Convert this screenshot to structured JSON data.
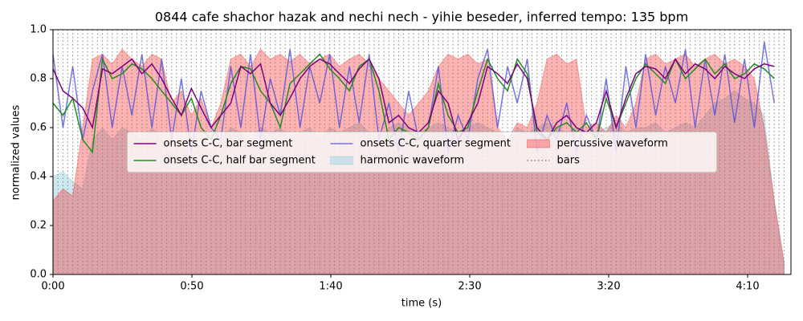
{
  "chart_data": {
    "type": "line",
    "title": "0844 cafe shachor hazak and nechi nech - yihie beseder, inferred tempo: 135 bpm",
    "x_label": "time (s)",
    "y_label": "normalized values",
    "xlim": [
      0,
      265.6
    ],
    "ylim": [
      0,
      1
    ],
    "xticks": [
      {
        "value": 0,
        "label": "0:00"
      },
      {
        "value": 50,
        "label": "0:50"
      },
      {
        "value": 100,
        "label": "1:40"
      },
      {
        "value": 150,
        "label": "2:30"
      },
      {
        "value": 200,
        "label": "3:20"
      },
      {
        "value": 250,
        "label": "4:10"
      }
    ],
    "yticks": [
      {
        "value": 0,
        "label": "0.0"
      },
      0.2,
      0.4,
      0.6,
      0.8,
      {
        "value": 1,
        "label": "1.0"
      }
    ],
    "legend": "center",
    "x": [
      0.0,
      3.6,
      7.1,
      10.7,
      14.2,
      17.8,
      21.3,
      24.9,
      28.4,
      32.0,
      35.6,
      39.1,
      42.7,
      46.2,
      49.8,
      53.3,
      56.9,
      60.4,
      64.0,
      67.6,
      71.1,
      74.7,
      78.2,
      81.8,
      85.3,
      88.9,
      92.4,
      96.0,
      99.6,
      103.1,
      106.7,
      110.2,
      113.8,
      117.3,
      120.9,
      124.4,
      128.0,
      131.6,
      135.1,
      138.7,
      142.2,
      145.8,
      149.3,
      152.9,
      156.4,
      160.0,
      163.6,
      167.1,
      170.7,
      174.2,
      177.8,
      181.3,
      184.9,
      188.4,
      192.0,
      195.6,
      199.1,
      202.7,
      206.2,
      209.8,
      213.3,
      216.9,
      220.4,
      224.0,
      227.6,
      231.1,
      234.7,
      238.2,
      241.8,
      245.3,
      248.9,
      252.4,
      256.0,
      259.6,
      263.1
    ],
    "series": [
      {
        "name": "onsets C-C, bar segment",
        "mark": "line",
        "color": "#800080",
        "alpha": 1,
        "values": [
          0.84,
          0.75,
          0.72,
          0.68,
          0.6,
          0.84,
          0.82,
          0.85,
          0.88,
          0.82,
          0.86,
          0.8,
          0.72,
          0.65,
          0.76,
          0.68,
          0.6,
          0.65,
          0.7,
          0.85,
          0.82,
          0.86,
          0.7,
          0.65,
          0.72,
          0.8,
          0.85,
          0.88,
          0.86,
          0.82,
          0.78,
          0.84,
          0.88,
          0.8,
          0.62,
          0.65,
          0.6,
          0.58,
          0.62,
          0.75,
          0.7,
          0.55,
          0.62,
          0.7,
          0.85,
          0.82,
          0.78,
          0.86,
          0.8,
          0.6,
          0.55,
          0.62,
          0.65,
          0.6,
          0.58,
          0.62,
          0.75,
          0.6,
          0.72,
          0.82,
          0.85,
          0.84,
          0.8,
          0.88,
          0.82,
          0.86,
          0.84,
          0.8,
          0.85,
          0.82,
          0.8,
          0.84,
          0.86,
          0.85,
          null
        ]
      },
      {
        "name": "onsets C-C, half bar segment",
        "mark": "line",
        "color": "#228b22",
        "alpha": 1,
        "values": [
          0.7,
          0.65,
          0.72,
          0.55,
          0.5,
          0.88,
          0.8,
          0.82,
          0.86,
          0.84,
          0.8,
          0.75,
          0.7,
          0.65,
          0.72,
          0.6,
          0.55,
          0.65,
          0.78,
          0.85,
          0.84,
          0.75,
          0.7,
          0.6,
          0.78,
          0.82,
          0.86,
          0.9,
          0.84,
          0.8,
          0.75,
          0.85,
          0.88,
          0.75,
          0.55,
          0.6,
          0.58,
          0.55,
          0.6,
          0.78,
          0.65,
          0.58,
          0.6,
          0.75,
          0.88,
          0.8,
          0.75,
          0.88,
          0.82,
          0.58,
          0.55,
          0.6,
          0.62,
          0.58,
          0.62,
          0.55,
          0.72,
          0.6,
          0.7,
          0.8,
          0.86,
          0.82,
          0.78,
          0.88,
          0.8,
          0.84,
          0.88,
          0.82,
          0.86,
          0.8,
          0.82,
          0.86,
          0.84,
          0.8,
          null
        ]
      },
      {
        "name": "onsets C-C, quarter segment",
        "mark": "line",
        "color": "#4b4be0",
        "alpha": 0.75,
        "values": [
          0.9,
          0.6,
          0.85,
          0.55,
          0.75,
          0.9,
          0.6,
          0.85,
          0.65,
          0.9,
          0.6,
          0.88,
          0.55,
          0.8,
          0.5,
          0.75,
          0.6,
          0.55,
          0.85,
          0.6,
          0.9,
          0.55,
          0.8,
          0.65,
          0.92,
          0.6,
          0.85,
          0.7,
          0.9,
          0.6,
          0.85,
          0.62,
          0.9,
          0.55,
          0.7,
          0.5,
          0.75,
          0.55,
          0.6,
          0.85,
          0.5,
          0.65,
          0.55,
          0.8,
          0.92,
          0.6,
          0.85,
          0.7,
          0.88,
          0.5,
          0.65,
          0.55,
          0.7,
          0.5,
          0.65,
          0.55,
          0.8,
          0.5,
          0.85,
          0.6,
          0.9,
          0.65,
          0.85,
          0.7,
          0.92,
          0.6,
          0.88,
          0.65,
          0.9,
          0.62,
          0.88,
          0.6,
          0.95,
          0.7,
          null
        ]
      },
      {
        "name": "harmonic waveform",
        "mark": "fill",
        "color": "#add8e6",
        "alpha": 0.6,
        "values": [
          0.4,
          0.42,
          0.38,
          0.35,
          0.55,
          0.6,
          0.55,
          0.6,
          0.58,
          0.55,
          0.6,
          0.55,
          0.5,
          0.55,
          0.5,
          0.52,
          0.5,
          0.55,
          0.6,
          0.58,
          0.55,
          0.6,
          0.58,
          0.6,
          0.55,
          0.58,
          0.6,
          0.55,
          0.6,
          0.58,
          0.6,
          0.62,
          0.58,
          0.55,
          0.6,
          0.62,
          0.6,
          0.58,
          0.6,
          0.62,
          0.6,
          0.58,
          0.6,
          0.62,
          0.6,
          0.58,
          0.55,
          0.6,
          0.58,
          0.6,
          0.62,
          0.6,
          0.58,
          0.6,
          0.55,
          0.58,
          0.6,
          0.62,
          0.58,
          0.6,
          0.6,
          0.62,
          0.58,
          0.6,
          0.62,
          0.6,
          0.65,
          0.7,
          0.72,
          0.75,
          0.72,
          0.7,
          0.65,
          0.3,
          0.05
        ]
      },
      {
        "name": "percussive waveform",
        "mark": "fill",
        "color": "#ff0000",
        "alpha": 0.3,
        "values": [
          0.3,
          0.35,
          0.32,
          0.6,
          0.88,
          0.9,
          0.86,
          0.92,
          0.88,
          0.85,
          0.9,
          0.88,
          0.7,
          0.75,
          0.65,
          0.72,
          0.6,
          0.7,
          0.88,
          0.9,
          0.85,
          0.92,
          0.88,
          0.9,
          0.87,
          0.9,
          0.86,
          0.88,
          0.9,
          0.85,
          0.88,
          0.9,
          0.86,
          0.8,
          0.75,
          0.7,
          0.65,
          0.7,
          0.75,
          0.85,
          0.9,
          0.88,
          0.9,
          0.86,
          0.88,
          0.6,
          0.55,
          0.62,
          0.6,
          0.7,
          0.88,
          0.9,
          0.86,
          0.88,
          0.6,
          0.62,
          0.58,
          0.65,
          0.6,
          0.7,
          0.88,
          0.9,
          0.86,
          0.88,
          0.9,
          0.85,
          0.88,
          0.9,
          0.86,
          0.88,
          0.85,
          0.8,
          0.6,
          0.3,
          0.05
        ]
      },
      {
        "name": "bars",
        "mark": "vline",
        "color": "#808080",
        "alpha": 0.8,
        "x": [
          0.0,
          1.8,
          3.6,
          5.3,
          7.1,
          8.9,
          10.7,
          12.4,
          14.2,
          16.0,
          17.8,
          19.6,
          21.3,
          23.1,
          24.9,
          26.7,
          28.4,
          30.2,
          32.0,
          33.8,
          35.6,
          37.3,
          39.1,
          40.9,
          42.7,
          44.4,
          46.2,
          48.0,
          49.8,
          51.6,
          53.3,
          55.1,
          56.9,
          58.7,
          60.4,
          62.2,
          64.0,
          65.8,
          67.6,
          69.3,
          71.1,
          72.9,
          74.7,
          76.4,
          78.2,
          80.0,
          81.8,
          83.6,
          85.3,
          87.1,
          88.9,
          90.7,
          92.4,
          94.2,
          96.0,
          97.8,
          99.6,
          101.3,
          103.1,
          104.9,
          106.7,
          108.4,
          110.2,
          112.0,
          113.8,
          115.6,
          117.3,
          119.1,
          120.9,
          122.7,
          124.4,
          126.2,
          128.0,
          129.8,
          131.6,
          133.3,
          135.1,
          136.9,
          138.7,
          140.4,
          142.2,
          144.0,
          145.8,
          147.6,
          149.3,
          151.1,
          152.9,
          154.7,
          156.4,
          158.2,
          160.0,
          161.8,
          163.6,
          165.3,
          167.1,
          168.9,
          170.7,
          172.4,
          174.2,
          176.0,
          177.8,
          179.6,
          181.3,
          183.1,
          184.9,
          186.7,
          188.4,
          190.2,
          192.0,
          193.8,
          195.6,
          197.3,
          199.1,
          200.9,
          202.7,
          204.4,
          206.2,
          208.0,
          209.8,
          211.6,
          213.3,
          215.1,
          216.9,
          218.7,
          220.4,
          222.2,
          224.0,
          225.8,
          227.6,
          229.3,
          231.1,
          232.9,
          234.7,
          236.4,
          238.2,
          240.0,
          241.8,
          243.6,
          245.3,
          247.1,
          248.9,
          250.7,
          252.4,
          254.2,
          256.0,
          257.8,
          259.6,
          261.3,
          263.1
        ]
      }
    ]
  }
}
